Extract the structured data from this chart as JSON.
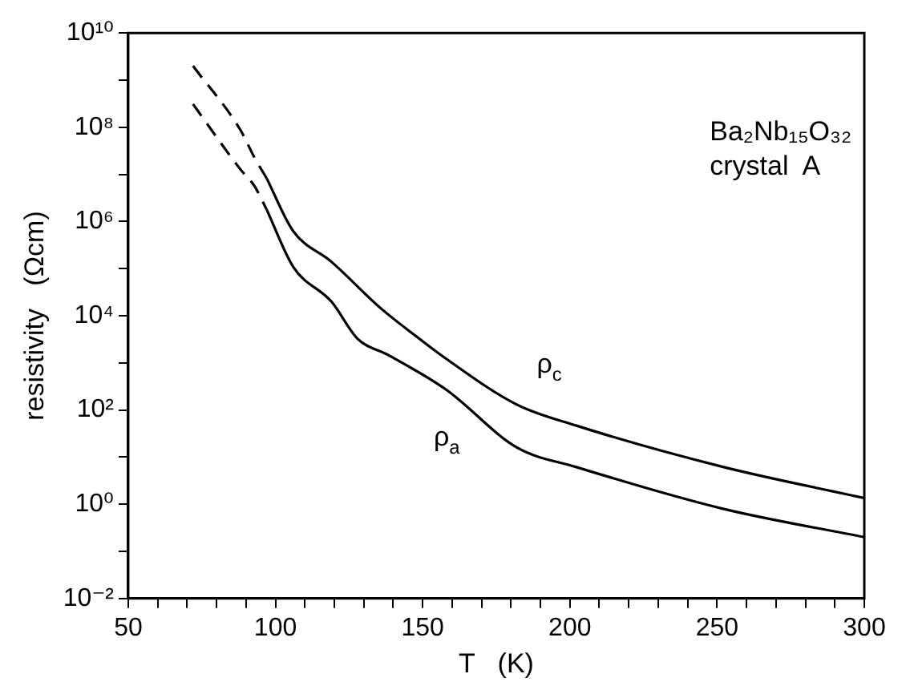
{
  "chart_data": {
    "type": "line",
    "xlabel": "T   (K)",
    "ylabel": "resistivity   (Ωcm)",
    "annotations": [
      "ρ$_{c}$",
      "ρ$_{a}$",
      "Ba₂Nb₁₅O₃₂",
      "crystal  A"
    ],
    "series": [
      {
        "color": "#000000",
        "line_style": "dashed",
        "x": [
          72,
          88,
          93,
          97
        ],
        "values": [
          2000000000,
          90000000,
          22000000,
          8300000
        ]
      },
      {
        "color": "#000000",
        "line_style": "solid",
        "x": [
          97,
          106,
          119,
          136,
          149,
          156,
          182,
          202,
          252,
          300
        ],
        "values": [
          8300000,
          630000,
          140000,
          14000,
          3200,
          1500,
          130,
          47,
          6.2,
          1.35
        ]
      },
      {
        "color": "#000000",
        "line_style": "dashed",
        "x": [
          72,
          88,
          93,
          97
        ],
        "values": [
          310000000,
          13000000,
          5500000,
          1800000
        ]
      },
      {
        "color": "#000000",
        "line_style": "solid",
        "x": [
          97,
          106,
          119,
          128,
          138,
          158,
          182,
          202,
          252,
          300
        ],
        "values": [
          1800000,
          110000,
          20000,
          3200,
          1500,
          270,
          16,
          6.2,
          0.8,
          0.2
        ]
      }
    ],
    "xlim": [
      50,
      300
    ],
    "ylim": [
      0.01,
      10000000000
    ],
    "log": "y",
    "grid": false,
    "legend": false,
    "marker": "none",
    "xticks": [
      50,
      {
        "value": 60,
        "label": null
      },
      {
        "value": 70,
        "label": null
      },
      {
        "value": 80,
        "label": null
      },
      {
        "value": 90,
        "label": null
      },
      100,
      {
        "value": 110,
        "label": null
      },
      {
        "value": 120,
        "label": null
      },
      {
        "value": 130,
        "label": null
      },
      {
        "value": 140,
        "label": null
      },
      150,
      {
        "value": 160,
        "label": null
      },
      {
        "value": 170,
        "label": null
      },
      {
        "value": 180,
        "label": null
      },
      {
        "value": 190,
        "label": null
      },
      200,
      {
        "value": 210,
        "label": null
      },
      {
        "value": 220,
        "label": null
      },
      {
        "value": 230,
        "label": null
      },
      {
        "value": 240,
        "label": null
      },
      250,
      {
        "value": 260,
        "label": null
      },
      {
        "value": 270,
        "label": null
      },
      {
        "value": 280,
        "label": null
      },
      {
        "value": 290,
        "label": null
      },
      300
    ],
    "yticks": [
      {
        "value": 0.01,
        "label": "10⁻²"
      },
      {
        "value": 0.1,
        "label": null
      },
      {
        "value": 1,
        "label": "10⁰"
      },
      {
        "value": 10,
        "label": null
      },
      {
        "value": 100,
        "label": "10²"
      },
      {
        "value": 1000,
        "label": null
      },
      {
        "value": 10000,
        "label": "10⁴"
      },
      {
        "value": 100000,
        "label": null
      },
      {
        "value": 1000000,
        "label": "10⁶"
      },
      {
        "value": 10000000,
        "label": null
      },
      {
        "value": 100000000,
        "label": "10⁸"
      },
      {
        "value": 1000000000,
        "label": null
      },
      {
        "value": 10000000000,
        "label": "10¹⁰"
      }
    ]
  }
}
